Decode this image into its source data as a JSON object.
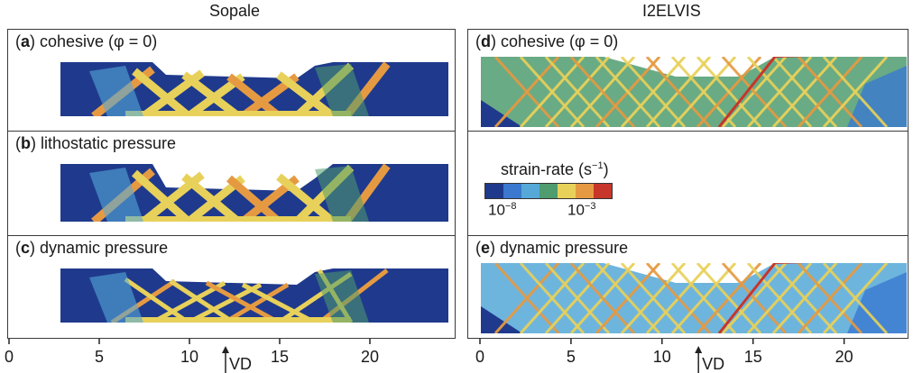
{
  "columns": {
    "left_title": "Sopale",
    "right_title": "I2ELVIS"
  },
  "panels": {
    "a": {
      "letter": "a",
      "text": "cohesive (φ = 0)"
    },
    "b": {
      "letter": "b",
      "text": "lithostatic pressure"
    },
    "c": {
      "letter": "c",
      "text": "dynamic pressure"
    },
    "d": {
      "letter": "d",
      "text": "cohesive (φ = 0)"
    },
    "e": {
      "letter": "e",
      "text": "dynamic pressure"
    }
  },
  "legend": {
    "title": "strain-rate (s",
    "title_exp": "−1",
    "title_close": ")",
    "tick_low_base": "10",
    "tick_low_exp": "−8",
    "tick_high_base": "10",
    "tick_high_exp": "−3",
    "colors": [
      "#1f3a8c",
      "#3a79cf",
      "#55a8d8",
      "#4f9c6e",
      "#e8d15a",
      "#e59a42",
      "#c8352a"
    ]
  },
  "axis": {
    "ticks": [
      "0",
      "5",
      "10",
      "15",
      "20"
    ],
    "marker_label": "VD",
    "marker_value": 12
  },
  "colors": {
    "deep": "#1f3a8c",
    "mid_blue": "#3a79cf",
    "light_blue": "#55a8d8",
    "green": "#4f9c6e",
    "yellow": "#e8d15a",
    "orange": "#e59a42",
    "red": "#c8352a"
  }
}
